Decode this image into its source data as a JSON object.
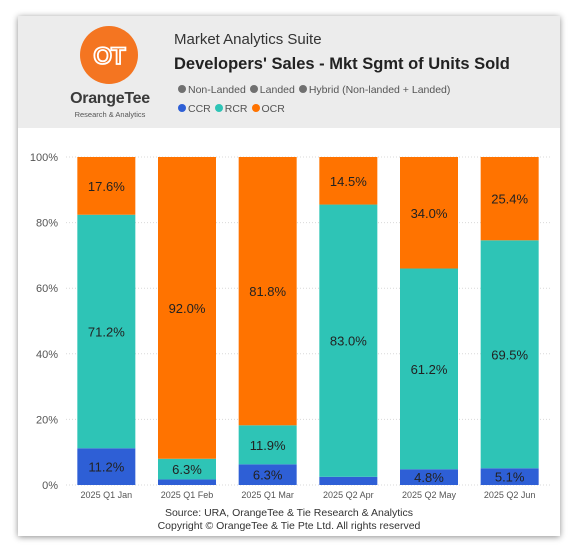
{
  "app": {
    "suite_name": "Market Analytics Suite",
    "report_title": "Developers' Sales - Mkt Sgmt of Units Sold"
  },
  "logo": {
    "glyph": "OT",
    "name": "OrangeTee",
    "tagline": "Research & Analytics",
    "color": "#f47521"
  },
  "filter_legend": [
    {
      "label": "Non-Landed",
      "color": "#707070"
    },
    {
      "label": "Landed",
      "color": "#707070"
    },
    {
      "label": "Hybrid (Non-landed + Landed)",
      "color": "#707070"
    }
  ],
  "footer": {
    "source": "Source: URA, OrangeTee & Tie Research & Analytics",
    "copyright": "Copyright © OrangeTee & Tie Pte Ltd. All rights reserved"
  },
  "chart_data": {
    "type": "bar",
    "stacked": true,
    "categories": [
      "2025 Q1 Jan",
      "2025 Q1 Feb",
      "2025 Q1 Mar",
      "2025 Q2 Apr",
      "2025 Q2 May",
      "2025 Q2 Jun"
    ],
    "series": [
      {
        "name": "CCR",
        "color": "#2e5fd6",
        "values": [
          11.2,
          1.7,
          6.3,
          2.5,
          4.8,
          5.1
        ],
        "labels": [
          "11.2%",
          "",
          "6.3%",
          "",
          "4.8%",
          "5.1%"
        ]
      },
      {
        "name": "RCR",
        "color": "#2ec4b6",
        "values": [
          71.2,
          6.3,
          11.9,
          83.0,
          61.2,
          69.5
        ],
        "labels": [
          "71.2%",
          "6.3%",
          "11.9%",
          "83.0%",
          "61.2%",
          "69.5%"
        ]
      },
      {
        "name": "OCR",
        "color": "#ff7300",
        "values": [
          17.6,
          92.0,
          81.8,
          14.5,
          34.0,
          25.4
        ],
        "labels": [
          "17.6%",
          "92.0%",
          "81.8%",
          "14.5%",
          "34.0%",
          "25.4%"
        ]
      }
    ],
    "y_ticks": [
      "0%",
      "20%",
      "40%",
      "60%",
      "80%",
      "100%"
    ],
    "ylim": [
      0,
      100
    ],
    "grid": true,
    "legend_position": "top-left"
  }
}
